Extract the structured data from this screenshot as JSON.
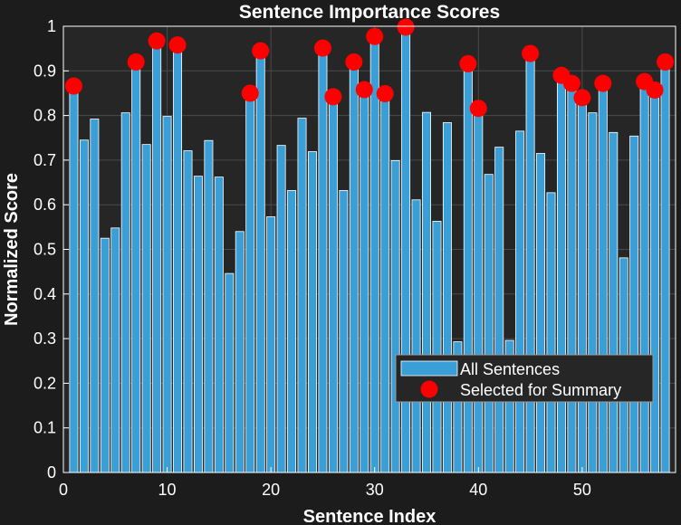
{
  "chart_data": {
    "type": "bar",
    "title": "Sentence Importance Scores",
    "xlabel": "Sentence Index",
    "ylabel": "Normalized Score",
    "xlim": [
      0,
      59
    ],
    "ylim": [
      0,
      1
    ],
    "xticks": [
      0,
      10,
      20,
      30,
      40,
      50
    ],
    "yticks": [
      0,
      0.1,
      0.2,
      0.3,
      0.4,
      0.5,
      0.6,
      0.7,
      0.8,
      0.9,
      1
    ],
    "grid": true,
    "legend_position": "bottom-right",
    "series": [
      {
        "name": "All Sentences",
        "type": "bar",
        "color": "#3a9fd6",
        "x": [
          1,
          2,
          3,
          4,
          5,
          6,
          7,
          8,
          9,
          10,
          11,
          12,
          13,
          14,
          15,
          16,
          17,
          18,
          19,
          20,
          21,
          22,
          23,
          24,
          25,
          26,
          27,
          28,
          29,
          30,
          31,
          32,
          33,
          34,
          35,
          36,
          37,
          38,
          39,
          40,
          41,
          42,
          43,
          44,
          45,
          46,
          47,
          48,
          49,
          50,
          51,
          52,
          53,
          54,
          55,
          56,
          57,
          58
        ],
        "values": [
          0.866,
          0.745,
          0.792,
          0.525,
          0.548,
          0.806,
          0.92,
          0.735,
          0.967,
          0.798,
          0.958,
          0.721,
          0.664,
          0.744,
          0.662,
          0.446,
          0.54,
          0.85,
          0.945,
          0.573,
          0.733,
          0.632,
          0.794,
          0.719,
          0.951,
          0.842,
          0.632,
          0.92,
          0.858,
          0.977,
          0.849,
          0.699,
          0.998,
          0.611,
          0.807,
          0.563,
          0.784,
          0.293,
          0.916,
          0.816,
          0.668,
          0.729,
          0.296,
          0.765,
          0.939,
          0.715,
          0.627,
          0.89,
          0.872,
          0.84,
          0.806,
          0.872,
          0.762,
          0.481,
          0.754,
          0.876,
          0.857,
          0.92
        ]
      },
      {
        "name": "Selected for Summary",
        "type": "scatter",
        "color": "#ff0000",
        "x": [
          1,
          7,
          9,
          11,
          18,
          19,
          25,
          26,
          28,
          29,
          30,
          31,
          33,
          39,
          40,
          45,
          48,
          49,
          50,
          52,
          56,
          57,
          58
        ],
        "values": [
          0.866,
          0.92,
          0.967,
          0.958,
          0.85,
          0.945,
          0.951,
          0.842,
          0.92,
          0.858,
          0.977,
          0.849,
          0.998,
          0.916,
          0.816,
          0.939,
          0.89,
          0.872,
          0.84,
          0.872,
          0.876,
          0.857,
          0.92
        ]
      }
    ]
  },
  "colors": {
    "figure_background": "#1c1c1c",
    "axes_background": "#262626",
    "grid": "#4a4a4a",
    "bar_fill": "#3a9fd6",
    "bar_edge": "#ffffff",
    "marker": "#ff0000",
    "text": "#ffffff"
  }
}
